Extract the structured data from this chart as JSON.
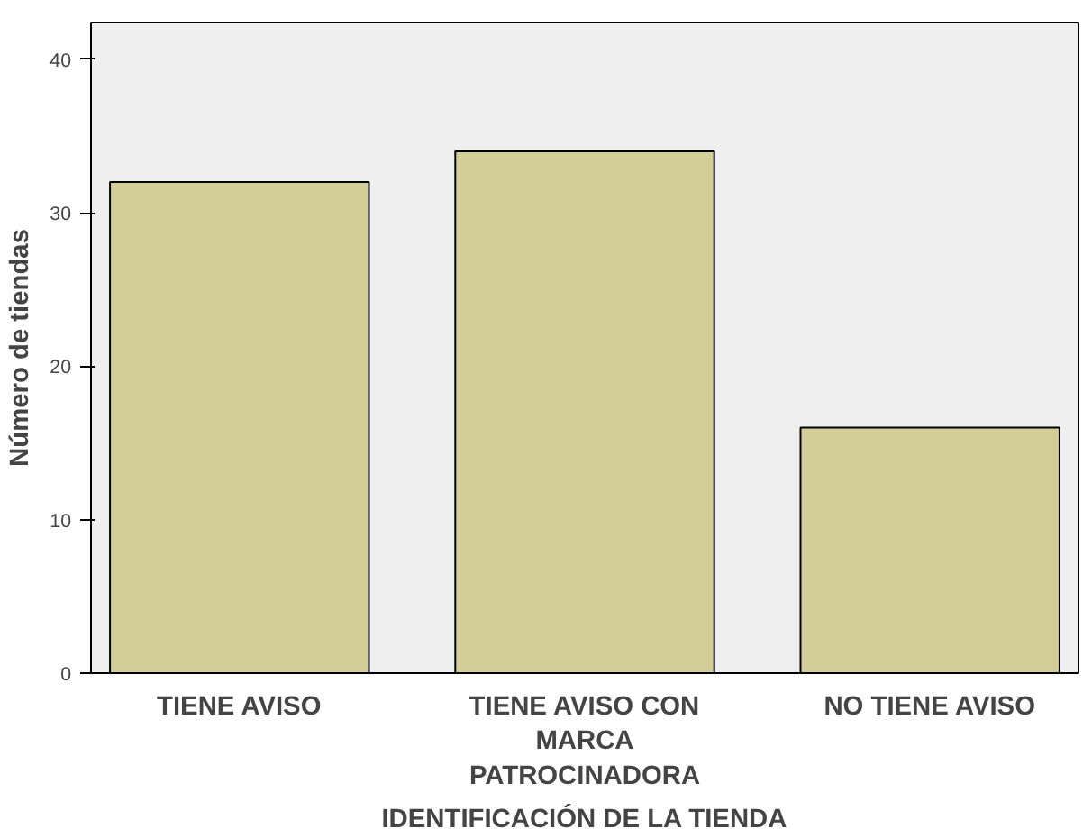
{
  "chart_data": {
    "type": "bar",
    "xlabel": "IDENTIFICACIÓN DE LA TIENDA",
    "ylabel": "Número de tiendas",
    "categories": [
      "TIENE AVISO",
      "TIENE AVISO CON MARCA PATROCINADORA",
      "NO TIENE AVISO"
    ],
    "values": [
      32,
      34,
      16
    ],
    "color": "#d3ce97",
    "ylim": [
      0,
      42.4
    ],
    "yticks": [
      0,
      10,
      20,
      30,
      40
    ],
    "grid": false
  }
}
